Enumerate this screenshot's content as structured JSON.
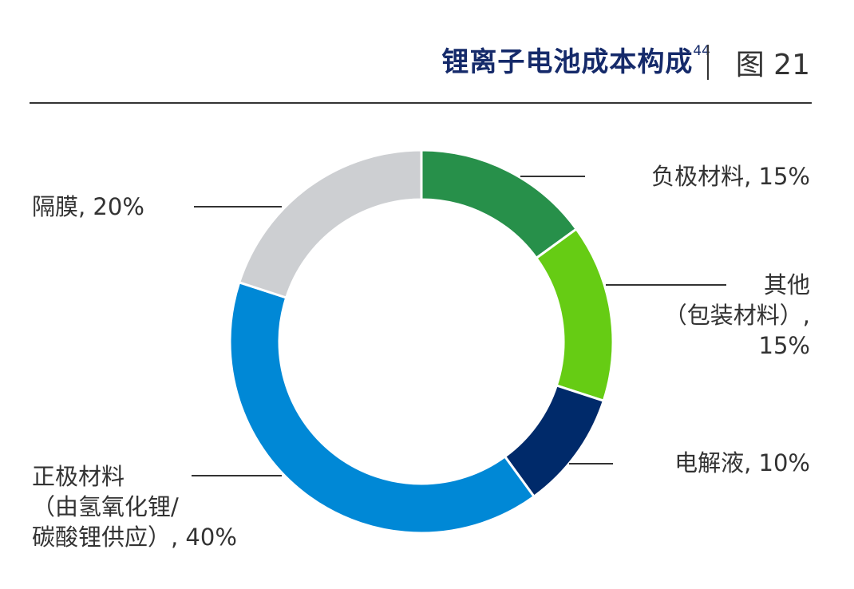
{
  "title": "锂离子电池成本构成",
  "title_superscript": "44",
  "figure_label": "图 21",
  "chart_data": {
    "type": "pie",
    "donut": true,
    "title": "锂离子电池成本构成",
    "slices": [
      {
        "label_lines": [
          "负极材料, 15%"
        ],
        "name": "负极材料",
        "value": 15,
        "color": "#27904a"
      },
      {
        "label_lines": [
          "其他",
          "（包装材料）,",
          "15%"
        ],
        "name": "其他（包装材料）",
        "value": 15,
        "color": "#66cc14"
      },
      {
        "label_lines": [
          "电解液, 10%"
        ],
        "name": "电解液",
        "value": 10,
        "color": "#002a6a"
      },
      {
        "label_lines": [
          "正极材料",
          "（由氢氧化锂/",
          "碳酸锂供应）, 40%"
        ],
        "name": "正极材料（由氢氧化锂/碳酸锂供应）",
        "value": 40,
        "color": "#0088d6"
      },
      {
        "label_lines": [
          "隔膜, 20%"
        ],
        "name": "隔膜",
        "value": 20,
        "color": "#cdcfd2"
      }
    ]
  }
}
